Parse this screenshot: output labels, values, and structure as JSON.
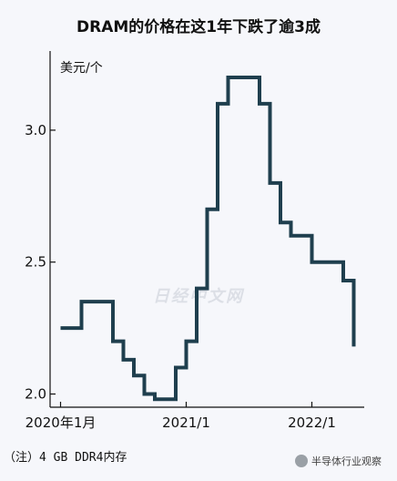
{
  "chart_data": {
    "type": "line",
    "step": true,
    "title": "DRAM的价格在这1年下跌了逾3成",
    "ylabel": "美元/个",
    "ylim": [
      1.95,
      3.3
    ],
    "yticks": [
      {
        "value": 2.0,
        "label": "2.0"
      },
      {
        "value": 2.5,
        "label": "2.5"
      },
      {
        "value": 3.0,
        "label": "3.0"
      }
    ],
    "xlim": [
      "2019-12",
      "2022-06"
    ],
    "xticks": [
      {
        "value": "2020-01",
        "label": "2020年1月"
      },
      {
        "value": "2021-01",
        "label": "2021/1"
      },
      {
        "value": "2022-01",
        "label": "2022/1"
      }
    ],
    "grid": false,
    "line_color": "#1f3f4e",
    "series": [
      {
        "x": [
          "2020-01",
          "2020-02",
          "2020-03",
          "2020-04",
          "2020-05",
          "2020-06",
          "2020-07",
          "2020-08",
          "2020-09",
          "2020-10",
          "2020-11",
          "2020-12",
          "2021-01",
          "2021-02",
          "2021-03",
          "2021-04",
          "2021-05",
          "2021-06",
          "2021-07",
          "2021-08",
          "2021-09",
          "2021-10",
          "2021-11",
          "2021-12",
          "2022-01",
          "2022-02",
          "2022-03",
          "2022-04",
          "2022-05"
        ],
        "values": [
          2.25,
          2.25,
          2.35,
          2.35,
          2.35,
          2.2,
          2.13,
          2.07,
          2.0,
          1.98,
          1.98,
          2.1,
          2.2,
          2.4,
          2.7,
          3.1,
          3.2,
          3.2,
          3.2,
          3.1,
          2.8,
          2.65,
          2.6,
          2.6,
          2.5,
          2.5,
          2.5,
          2.43,
          2.18
        ]
      }
    ],
    "note": "（注）4 GB DDR4内存"
  },
  "watermark": "日经中文网",
  "source_tag": "半导体行业观察",
  "colors": {
    "background": "#f6f7fb",
    "axis": "#111111"
  }
}
